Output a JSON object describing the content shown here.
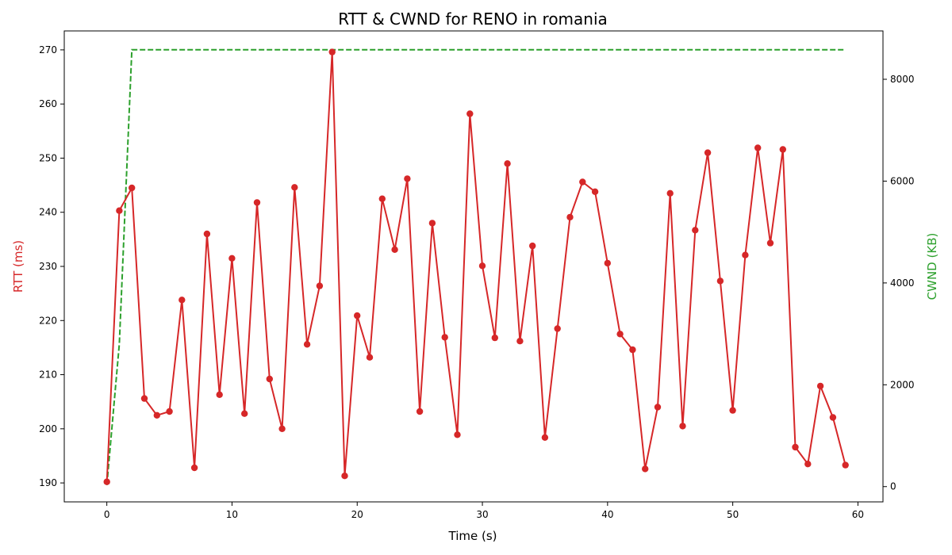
{
  "chart_data": {
    "type": "line",
    "title": "RTT & CWND for RENO in romania",
    "xlabel": "Time (s)",
    "ylabel_left": "RTT (ms)",
    "ylabel_right": "CWND (KB)",
    "xlim": [
      -3.4,
      62.0
    ],
    "ylim_left": [
      186.5,
      273.5
    ],
    "ylim_right": [
      -300,
      8950
    ],
    "x_ticks": [
      0,
      10,
      20,
      30,
      40,
      50,
      60
    ],
    "y_left_ticks": [
      190,
      200,
      210,
      220,
      230,
      240,
      250,
      260,
      270
    ],
    "y_right_ticks": [
      0,
      2000,
      4000,
      6000,
      8000
    ],
    "grid": false,
    "colors": {
      "rtt": "#d62728",
      "cwnd": "#2ca02c"
    },
    "series": [
      {
        "key": "rtt",
        "axis": "left",
        "style": "solid-markers",
        "x": [
          0,
          1,
          2,
          3,
          4,
          5,
          6,
          7,
          8,
          9,
          10,
          11,
          12,
          13,
          14,
          15,
          16,
          17,
          18,
          19,
          20,
          21,
          22,
          23,
          24,
          25,
          26,
          27,
          28,
          29,
          30,
          31,
          32,
          33,
          34,
          35,
          36,
          37,
          38,
          39,
          40,
          41,
          42,
          43,
          44,
          45,
          46,
          47,
          48,
          49,
          50,
          51,
          52,
          53,
          54,
          55,
          56,
          57,
          58,
          59
        ],
        "values": [
          190.2,
          240.3,
          244.5,
          205.6,
          202.5,
          203.2,
          223.8,
          192.8,
          236.0,
          206.3,
          231.5,
          202.8,
          241.8,
          209.2,
          200.0,
          244.6,
          215.6,
          226.4,
          269.6,
          191.3,
          220.9,
          213.2,
          242.5,
          233.1,
          246.2,
          203.2,
          238.0,
          216.9,
          198.9,
          258.2,
          230.1,
          216.8,
          249.0,
          216.2,
          233.8,
          198.4,
          218.5,
          239.1,
          245.6,
          243.8,
          230.6,
          217.5,
          214.6,
          192.6,
          204.0,
          243.5,
          200.5,
          236.7,
          251.0,
          227.3,
          203.4,
          232.1,
          251.9,
          234.3,
          251.6,
          196.6,
          193.5,
          207.9,
          202.1,
          193.3
        ]
      },
      {
        "key": "cwnd",
        "axis": "right",
        "style": "dashed",
        "x": [
          0,
          1,
          2,
          3,
          59
        ],
        "values": [
          30,
          2800,
          8580,
          8580,
          8580
        ]
      }
    ]
  }
}
